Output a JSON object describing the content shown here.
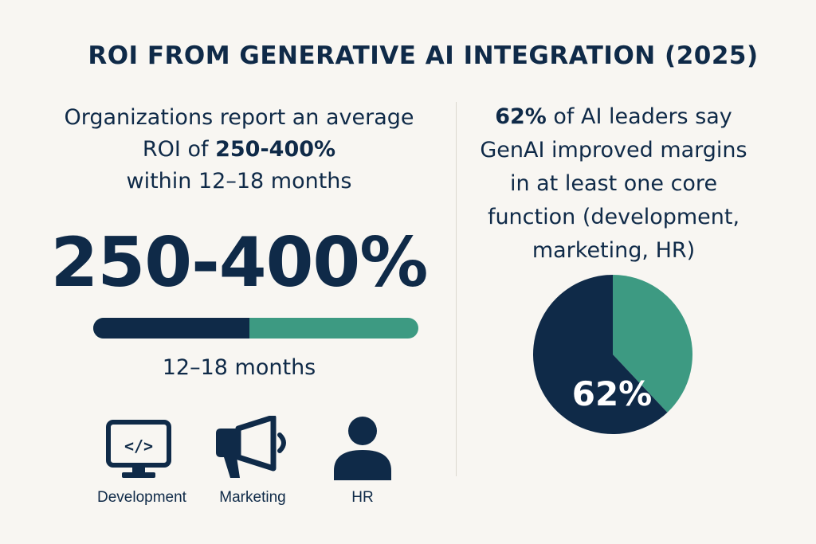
{
  "title": "ROI FROM GENERATIVE AI INTEGRATION (2025)",
  "left": {
    "line1": "Organizations report an average",
    "line2_pre": "ROI of ",
    "line2_bold": "250-400%",
    "line3": "within 12–18 months",
    "big_number": "250-400%",
    "bar_fraction": 0.48,
    "timeframe": "12–18 months",
    "icons": [
      {
        "icon": "monitor-code-icon",
        "label": "Development"
      },
      {
        "icon": "megaphone-icon",
        "label": "Marketing"
      },
      {
        "icon": "person-icon",
        "label": "HR"
      }
    ]
  },
  "right": {
    "line1_bold": "62%",
    "line1_rest": " of AI leaders say",
    "line2": "GenAI improved margins",
    "line3": "in at least one core",
    "line4": "function (development,",
    "line5": "marketing, HR)",
    "pie_label": "62%"
  },
  "colors": {
    "navy": "#0f2a48",
    "green": "#3d9a82",
    "background": "#f8f6f2"
  },
  "chart_data": {
    "type": "pie",
    "slices": [
      {
        "value": 62,
        "color": "#0f2a48"
      },
      {
        "value": 38,
        "color": "#3d9a82"
      }
    ],
    "annotations": [
      "62%"
    ]
  }
}
